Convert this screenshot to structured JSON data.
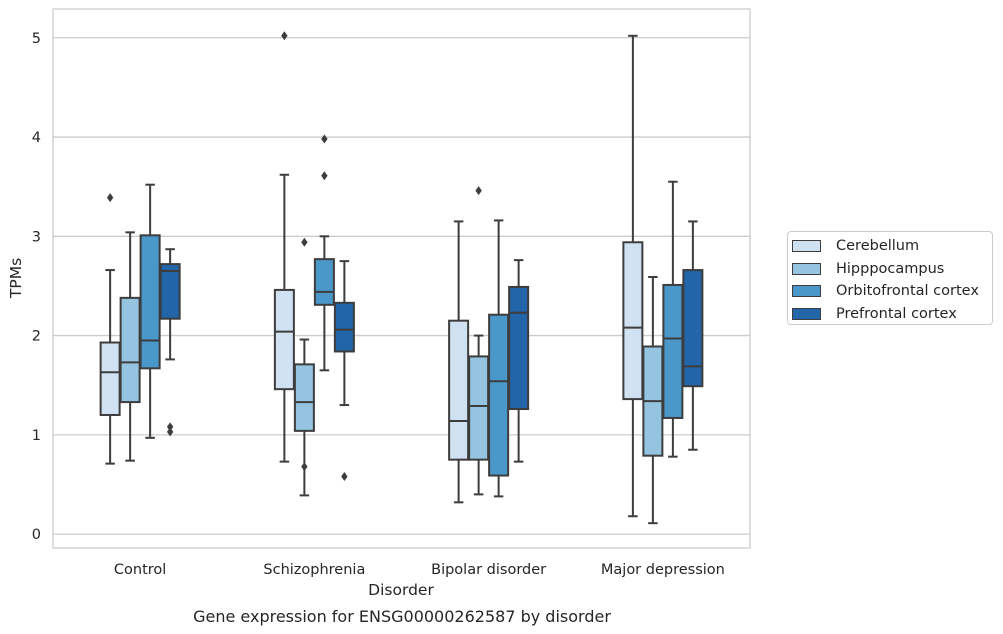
{
  "chart_data": {
    "type": "box",
    "caption": "Gene expression for ENSG00000262587 by disorder",
    "xlabel": "Disorder",
    "ylabel": "TPMs",
    "ylim": [
      -0.14,
      5.29
    ],
    "yticks": [
      "0",
      "1",
      "2",
      "3",
      "4",
      "5"
    ],
    "categories": [
      "Control",
      "Schizophrenia",
      "Bipolar disorder",
      "Major depression"
    ],
    "grid": "horizontal",
    "legend_position": "right-outside",
    "series": [
      {
        "name": "Cerebellum",
        "color": "#d0e1f2",
        "boxes": [
          {
            "whisker_low": 0.71,
            "q1": 1.2,
            "median": 1.63,
            "q3": 1.93,
            "whisker_high": 2.66,
            "outliers": [
              3.39
            ]
          },
          {
            "whisker_low": 0.73,
            "q1": 1.46,
            "median": 2.04,
            "q3": 2.46,
            "whisker_high": 3.62,
            "outliers": [
              5.02
            ]
          },
          {
            "whisker_low": 0.32,
            "q1": 0.75,
            "median": 1.14,
            "q3": 2.15,
            "whisker_high": 3.15,
            "outliers": []
          },
          {
            "whisker_low": 0.18,
            "q1": 1.36,
            "median": 2.08,
            "q3": 2.94,
            "whisker_high": 5.02,
            "outliers": []
          }
        ]
      },
      {
        "name": "Hipppocampus",
        "color": "#94c4df",
        "boxes": [
          {
            "whisker_low": 0.74,
            "q1": 1.33,
            "median": 1.73,
            "q3": 2.38,
            "whisker_high": 3.04,
            "outliers": []
          },
          {
            "whisker_low": 0.39,
            "q1": 1.04,
            "median": 1.33,
            "q3": 1.71,
            "whisker_high": 1.96,
            "outliers": [
              2.94,
              0.68
            ]
          },
          {
            "whisker_low": 0.4,
            "q1": 0.75,
            "median": 1.29,
            "q3": 1.79,
            "whisker_high": 2.0,
            "outliers": [
              3.46
            ]
          },
          {
            "whisker_low": 0.11,
            "q1": 0.79,
            "median": 1.34,
            "q3": 1.89,
            "whisker_high": 2.59,
            "outliers": []
          }
        ]
      },
      {
        "name": "Orbitofrontal cortex",
        "color": "#4a98c9",
        "boxes": [
          {
            "whisker_low": 0.97,
            "q1": 1.67,
            "median": 1.95,
            "q3": 3.01,
            "whisker_high": 3.52,
            "outliers": []
          },
          {
            "whisker_low": 1.65,
            "q1": 2.31,
            "median": 2.44,
            "q3": 2.77,
            "whisker_high": 3.0,
            "outliers": [
              3.98,
              3.61
            ]
          },
          {
            "whisker_low": 0.38,
            "q1": 0.59,
            "median": 1.54,
            "q3": 2.21,
            "whisker_high": 3.16,
            "outliers": []
          },
          {
            "whisker_low": 0.78,
            "q1": 1.17,
            "median": 1.97,
            "q3": 2.51,
            "whisker_high": 3.55,
            "outliers": []
          }
        ]
      },
      {
        "name": "Prefrontal cortex",
        "color": "#2265a9",
        "boxes": [
          {
            "whisker_low": 1.76,
            "q1": 2.17,
            "median": 2.65,
            "q3": 2.72,
            "whisker_high": 2.87,
            "outliers": [
              1.08,
              1.03
            ]
          },
          {
            "whisker_low": 1.3,
            "q1": 1.84,
            "median": 2.06,
            "q3": 2.33,
            "whisker_high": 2.75,
            "outliers": [
              0.58
            ]
          },
          {
            "whisker_low": 0.73,
            "q1": 1.26,
            "median": 2.23,
            "q3": 2.49,
            "whisker_high": 2.76,
            "outliers": []
          },
          {
            "whisker_low": 0.85,
            "q1": 1.49,
            "median": 1.69,
            "q3": 2.66,
            "whisker_high": 3.15,
            "outliers": []
          }
        ]
      }
    ]
  }
}
